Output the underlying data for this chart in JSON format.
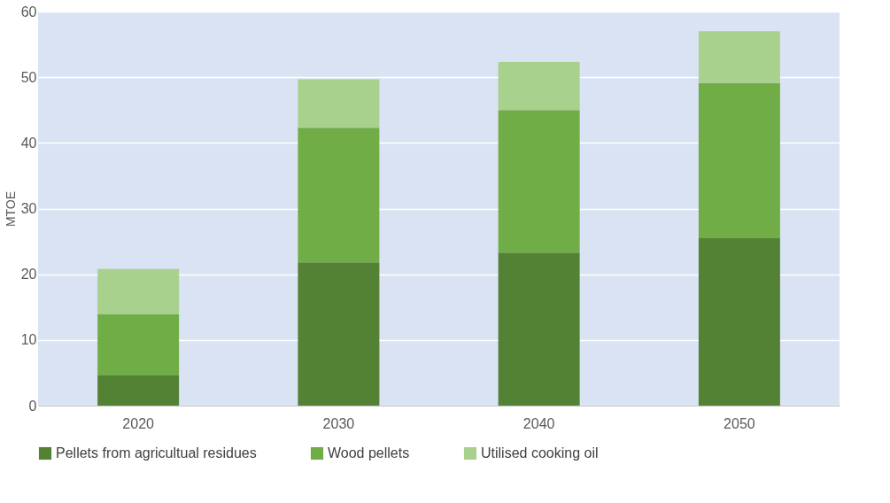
{
  "chart_data": {
    "type": "bar",
    "stacked": true,
    "ylabel": "MTOE",
    "categories": [
      "2020",
      "2030",
      "2040",
      "2050"
    ],
    "series": [
      {
        "name": "Pellets from agricultual residues",
        "color": "#548235",
        "values": [
          4.6,
          21.8,
          23.3,
          25.5
        ]
      },
      {
        "name": "Wood pellets",
        "color": "#70ad47",
        "values": [
          9.3,
          20.5,
          21.7,
          23.6
        ]
      },
      {
        "name": "Utilised cooking oil",
        "color": "#a9d18e",
        "values": [
          6.9,
          7.4,
          7.3,
          7.9
        ]
      }
    ],
    "ylim": [
      0,
      60
    ],
    "yticks": [
      0,
      10,
      20,
      30,
      40,
      50,
      60
    ],
    "grid": "y",
    "legend": "bottom"
  }
}
